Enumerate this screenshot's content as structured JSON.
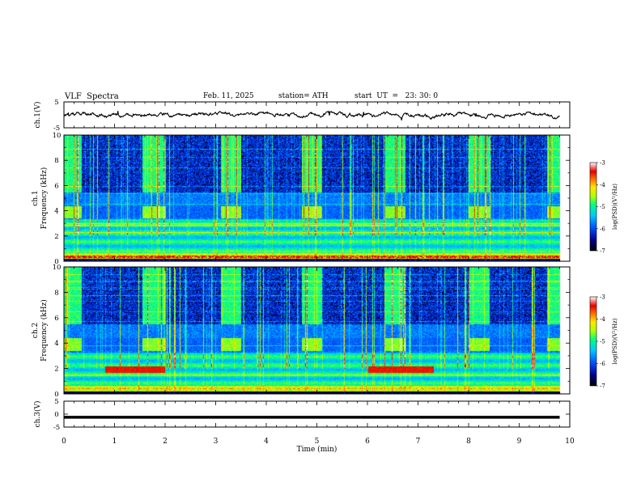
{
  "header": {
    "title": "VLF  Spectra",
    "date": "Feb. 11, 2025",
    "station": "station= ATH",
    "start": "start  UT  =   23: 30: 0"
  },
  "chart_data": [
    {
      "type": "line",
      "panel": "ch1-waveform",
      "ylabel": "ch.1(V)",
      "ylim": [
        -5,
        5
      ],
      "yticks": [
        "5",
        "-5"
      ],
      "xlim": [
        0,
        10
      ],
      "series": [
        {
          "values_description_free": true,
          "x_range": [
            0,
            9.8
          ],
          "mean": 0,
          "amplitude": 0.6
        }
      ]
    },
    {
      "type": "heatmap",
      "panel": "ch1-spectrogram",
      "ylabel": "ch.1\nFrequency (kHz)",
      "ylim": [
        0,
        10
      ],
      "yticks": [
        "0",
        "2",
        "4",
        "6",
        "8",
        "10"
      ],
      "xlim": [
        0,
        10
      ],
      "data_end_min": 9.8,
      "band_kHz": [
        3.4,
        4.4
      ],
      "band_on_intervals_min": [
        [
          0,
          0.35
        ],
        [
          1.55,
          2.0
        ],
        [
          3.1,
          3.5
        ],
        [
          4.7,
          5.1
        ],
        [
          6.35,
          6.75
        ],
        [
          8.0,
          8.4
        ],
        [
          9.55,
          9.8
        ]
      ],
      "colorbar": {
        "label": "log(PSD)(V²/Hz)",
        "range": [
          -7,
          -3
        ],
        "ticks": [
          "-3",
          "-4",
          "-5",
          "-6",
          "-7"
        ]
      }
    },
    {
      "type": "heatmap",
      "panel": "ch2-spectrogram",
      "ylabel": "ch.2\nFrequency (kHz)",
      "ylim": [
        0,
        10
      ],
      "yticks": [
        "0",
        "2",
        "4",
        "6",
        "8",
        "10"
      ],
      "xlim": [
        0,
        10
      ],
      "data_end_min": 9.8,
      "band_kHz": [
        3.4,
        4.4
      ],
      "band_on_intervals_min": [
        [
          0,
          0.35
        ],
        [
          1.55,
          2.0
        ],
        [
          3.1,
          3.5
        ],
        [
          4.7,
          5.1
        ],
        [
          6.35,
          6.75
        ],
        [
          8.0,
          8.4
        ],
        [
          9.55,
          9.8
        ]
      ],
      "colorbar": {
        "label": "log(PSD)(V²/Hz)",
        "range": [
          -7,
          -3
        ],
        "ticks": [
          "-3",
          "-4",
          "-5",
          "-6",
          "-7"
        ]
      }
    },
    {
      "type": "line",
      "panel": "ch3-waveform",
      "ylabel": "ch.3(V)",
      "ylim": [
        -5,
        5
      ],
      "yticks": [
        "5",
        "0",
        "-5"
      ],
      "xlim": [
        0,
        10
      ],
      "xlabel": "Time  (min)",
      "xticks": [
        "0",
        "1",
        "2",
        "3",
        "4",
        "5",
        "6",
        "7",
        "8",
        "9",
        "10"
      ],
      "series": [
        {
          "x_range": [
            0,
            9.8
          ],
          "value": -1.2
        }
      ]
    }
  ]
}
